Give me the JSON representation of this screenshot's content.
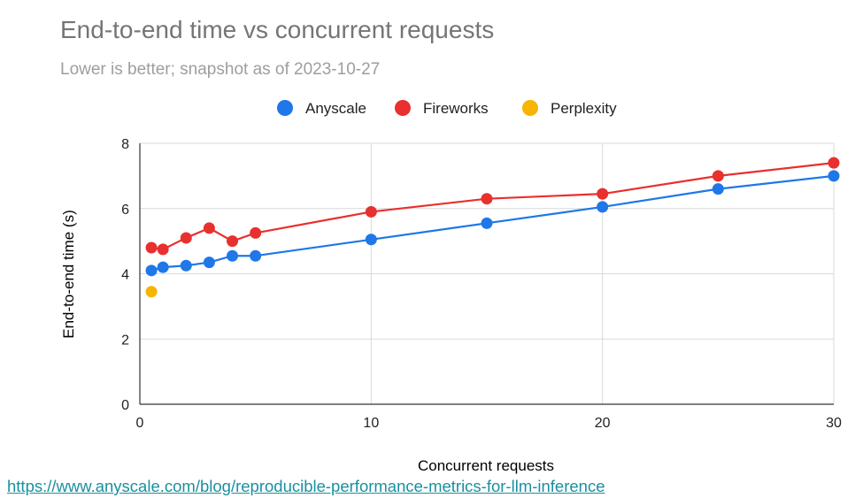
{
  "chart_data": {
    "type": "line",
    "title": "End-to-end time vs concurrent requests",
    "subtitle": "Lower is better; snapshot as of 2023-10-27",
    "xlabel": "Concurrent requests",
    "ylabel": "End-to-end time (s)",
    "xlim": [
      0,
      30
    ],
    "ylim": [
      0,
      8
    ],
    "xticks": [
      0,
      10,
      20,
      30
    ],
    "yticks": [
      0,
      2,
      4,
      6,
      8
    ],
    "grid": true,
    "legend_position": "top-center",
    "series": [
      {
        "name": "Anyscale",
        "color": "#1f77e8",
        "line": true,
        "x": [
          0.5,
          1,
          2,
          3,
          4,
          5,
          10,
          15,
          20,
          25,
          30
        ],
        "y": [
          4.1,
          4.2,
          4.25,
          4.35,
          4.55,
          4.55,
          5.05,
          5.55,
          6.05,
          6.6,
          7.0
        ]
      },
      {
        "name": "Fireworks",
        "color": "#e8302e",
        "line": true,
        "x": [
          0.5,
          1,
          2,
          3,
          4,
          5,
          10,
          15,
          20,
          25,
          30
        ],
        "y": [
          4.8,
          4.75,
          5.1,
          5.4,
          5.0,
          5.25,
          5.9,
          6.3,
          6.45,
          7.0,
          7.4
        ]
      },
      {
        "name": "Perplexity",
        "color": "#f7b400",
        "line": false,
        "x": [
          0.5
        ],
        "y": [
          3.45
        ]
      }
    ]
  },
  "source": {
    "url_text": "https://www.anyscale.com/blog/reproducible-performance-metrics-for-llm-inference"
  }
}
